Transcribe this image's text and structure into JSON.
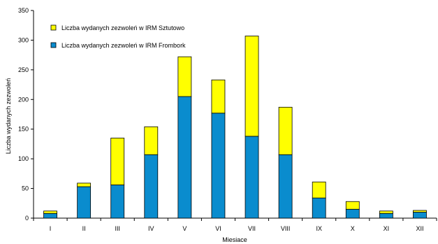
{
  "chart_data": {
    "type": "bar",
    "stacked": true,
    "title": "",
    "xlabel": "Miesiace",
    "ylabel": "Liczba wydanych zezwoleń",
    "ylim": [
      0,
      350
    ],
    "yticks": [
      0,
      50,
      100,
      150,
      200,
      250,
      300,
      350
    ],
    "categories": [
      "I",
      "II",
      "III",
      "IV",
      "V",
      "VI",
      "VII",
      "VIII",
      "IX",
      "X",
      "XI",
      "XII"
    ],
    "series": [
      {
        "name": "Liczba wydanych zezwoleń w IRM Frombork",
        "color": "#0a8cce",
        "values": [
          8,
          53,
          56,
          107,
          205,
          177,
          138,
          107,
          34,
          15,
          8,
          10
        ]
      },
      {
        "name": "Liczba wydanych zezwoleń w IRM Sztutowo",
        "color": "#ffff00",
        "values": [
          4,
          6,
          79,
          47,
          67,
          56,
          169,
          80,
          27,
          13,
          4,
          3
        ]
      }
    ],
    "legend": {
      "placement": "top-left",
      "order": [
        1,
        0
      ]
    },
    "grid": false
  }
}
